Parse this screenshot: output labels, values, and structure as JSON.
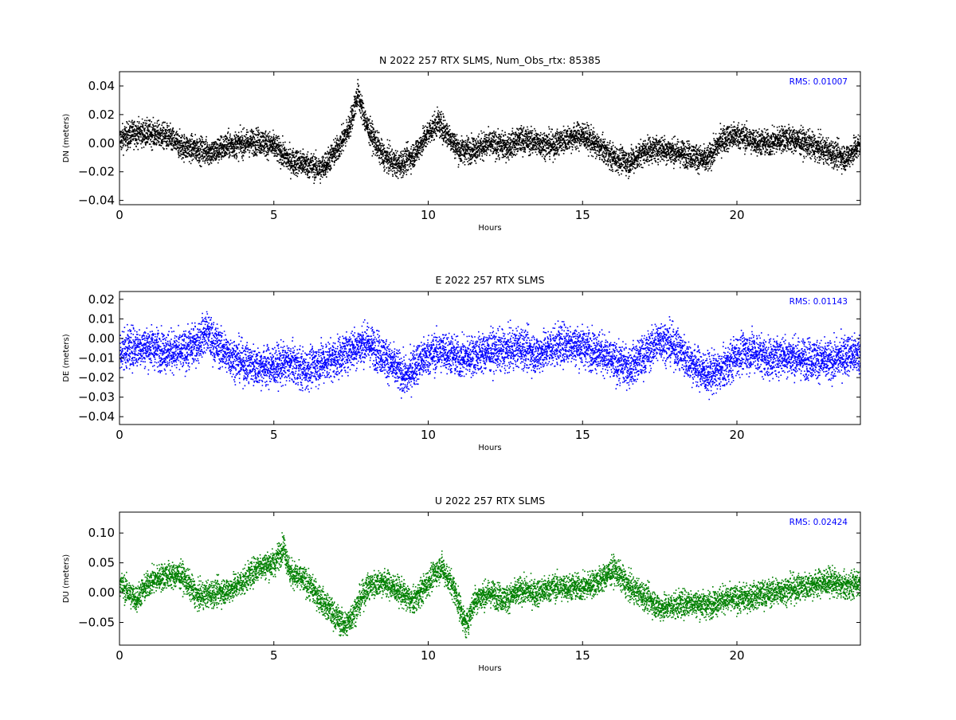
{
  "chart_data": [
    {
      "type": "scatter",
      "title": "N 2022 257 RTX  SLMS, Num_Obs_rtx: 85385",
      "xlabel": "Hours",
      "ylabel": "DN (meters)",
      "xlim": [
        0,
        24
      ],
      "ylim": [
        -0.043,
        0.05
      ],
      "xticks": [
        "0",
        "5",
        "10",
        "15",
        "20"
      ],
      "yticks": [
        "0.04",
        "0.02",
        "0.00",
        "−0.02",
        "−0.04"
      ],
      "rms_label": "RMS:  0.01007",
      "color": "#000000",
      "series": [
        {
          "x": [
            0,
            0.5,
            1,
            1.5,
            2,
            2.5,
            3,
            3.5,
            4,
            4.5,
            5,
            5.5,
            6,
            6.5,
            7,
            7.4,
            7.7,
            8,
            8.5,
            9,
            9.5,
            10,
            10.3,
            10.7,
            11,
            11.5,
            12,
            12.5,
            13,
            13.5,
            14,
            14.5,
            15,
            15.5,
            16,
            16.5,
            17,
            17.5,
            18,
            18.5,
            19,
            19.5,
            20,
            20.5,
            21,
            21.5,
            22,
            22.5,
            23,
            23.5,
            24
          ],
          "y": [
            0.003,
            0.008,
            0.007,
            0.005,
            -0.002,
            -0.004,
            -0.006,
            -0.001,
            0.0,
            0.002,
            -0.002,
            -0.012,
            -0.014,
            -0.018,
            -0.005,
            0.01,
            0.035,
            0.012,
            -0.008,
            -0.015,
            -0.008,
            0.008,
            0.015,
            0.004,
            -0.005,
            -0.003,
            0.0,
            -0.002,
            0.003,
            0.001,
            -0.001,
            0.004,
            0.006,
            -0.002,
            -0.01,
            -0.013,
            -0.005,
            -0.003,
            -0.006,
            -0.008,
            -0.012,
            0.003,
            0.006,
            0.002,
            0.0,
            0.004,
            0.002,
            -0.002,
            -0.006,
            -0.01,
            0.0
          ],
          "spread": 0.009
        }
      ]
    },
    {
      "type": "scatter",
      "title": "E 2022 257 RTX  SLMS",
      "xlabel": "Hours",
      "ylabel": "DE (meters)",
      "xlim": [
        0,
        24
      ],
      "ylim": [
        -0.044,
        0.024
      ],
      "xticks": [
        "0",
        "5",
        "10",
        "15",
        "20"
      ],
      "yticks": [
        "0.02",
        "0.01",
        "0.00",
        "−0.01",
        "−0.02",
        "−0.03",
        "−0.04"
      ],
      "rms_label": "RMS:  0.01143",
      "color": "#0000ff",
      "series": [
        {
          "x": [
            0,
            0.5,
            1,
            1.5,
            2,
            2.5,
            2.8,
            3,
            3.5,
            4,
            4.5,
            5,
            5.5,
            6,
            6.5,
            7,
            7.5,
            8,
            8.5,
            9,
            9.3,
            9.5,
            10,
            10.5,
            11,
            11.5,
            12,
            12.5,
            13,
            13.5,
            14,
            14.5,
            15,
            15.5,
            16,
            16.5,
            17,
            17.5,
            18,
            18.5,
            19,
            19.5,
            20,
            20.5,
            21,
            21.5,
            22,
            22.5,
            23,
            23.5,
            24
          ],
          "y": [
            -0.006,
            -0.004,
            -0.004,
            -0.006,
            -0.007,
            -0.002,
            0.004,
            -0.001,
            -0.008,
            -0.012,
            -0.014,
            -0.014,
            -0.012,
            -0.016,
            -0.012,
            -0.01,
            -0.005,
            -0.002,
            -0.008,
            -0.016,
            -0.02,
            -0.014,
            -0.008,
            -0.006,
            -0.01,
            -0.008,
            -0.006,
            -0.006,
            -0.004,
            -0.008,
            -0.004,
            -0.002,
            -0.004,
            -0.006,
            -0.012,
            -0.014,
            -0.008,
            0.0,
            -0.004,
            -0.012,
            -0.018,
            -0.016,
            -0.008,
            -0.006,
            -0.01,
            -0.008,
            -0.01,
            -0.01,
            -0.012,
            -0.008,
            -0.008
          ],
          "spread": 0.01
        }
      ]
    },
    {
      "type": "scatter",
      "title": "U 2022 257 RTX  SLMS",
      "xlabel": "Hours",
      "ylabel": "DU (meters)",
      "xlim": [
        0,
        24
      ],
      "ylim": [
        -0.088,
        0.135
      ],
      "xticks": [
        "0",
        "5",
        "10",
        "15",
        "20"
      ],
      "yticks": [
        "0.10",
        "0.05",
        "0.00",
        "−0.05"
      ],
      "rms_label": "RMS:  0.02424",
      "color": "#008000",
      "series": [
        {
          "x": [
            0,
            0.5,
            1,
            1.5,
            2,
            2.5,
            3,
            3.5,
            4,
            4.5,
            5,
            5.3,
            5.5,
            6,
            6.5,
            7,
            7.3,
            7.6,
            8,
            8.5,
            9,
            9.5,
            10,
            10.4,
            10.8,
            11.2,
            11.5,
            12,
            12.5,
            13,
            13.5,
            14,
            14.5,
            15,
            15.5,
            16,
            16.5,
            17,
            17.5,
            18,
            18.5,
            19,
            19.5,
            20,
            20.5,
            21,
            21.5,
            22,
            22.5,
            23,
            23.5,
            24
          ],
          "y": [
            0.015,
            -0.01,
            0.02,
            0.03,
            0.03,
            -0.005,
            0.0,
            0.005,
            0.02,
            0.045,
            0.05,
            0.08,
            0.035,
            0.02,
            -0.01,
            -0.04,
            -0.055,
            -0.03,
            0.01,
            0.02,
            0.005,
            -0.015,
            0.02,
            0.045,
            0.01,
            -0.055,
            -0.01,
            0.0,
            -0.01,
            0.005,
            0.0,
            0.01,
            0.01,
            0.01,
            0.02,
            0.04,
            0.01,
            -0.005,
            -0.025,
            -0.02,
            -0.015,
            -0.02,
            -0.01,
            -0.01,
            -0.005,
            0.0,
            0.005,
            0.01,
            0.015,
            0.02,
            0.01,
            0.02
          ],
          "spread": 0.022
        }
      ]
    }
  ]
}
